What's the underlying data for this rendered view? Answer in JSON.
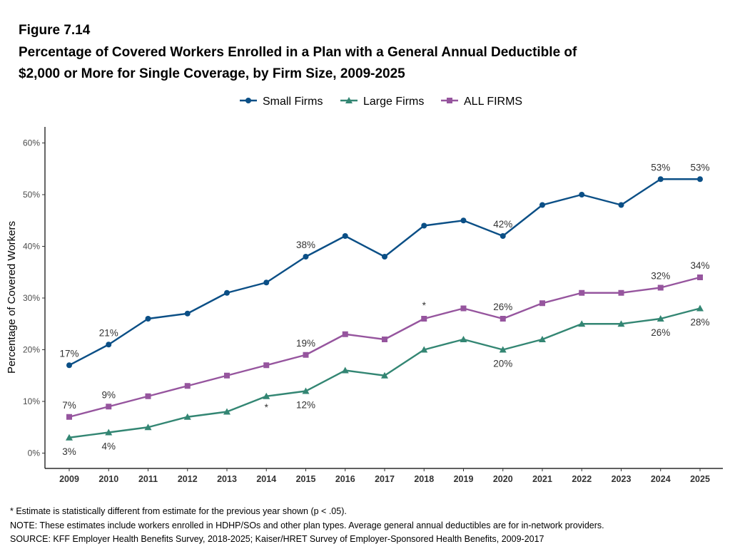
{
  "figure_label": "Figure 7.14",
  "title_line1": "Percentage of Covered Workers Enrolled in a Plan with a General Annual Deductible of",
  "title_line2": "$2,000 or More for Single Coverage, by Firm Size, 2009-2025",
  "notes": [
    "* Estimate is statistically different from estimate for the previous year shown (p < .05).",
    "NOTE: These estimates include workers enrolled in HDHP/SOs and other plan types. Average general annual deductibles are for in-network providers.",
    "SOURCE: KFF Employer Health Benefits Survey, 2018-2025; Kaiser/HRET Survey of Employer-Sponsored Health Benefits, 2009-2017"
  ],
  "chart_data": {
    "type": "line",
    "ylabel": "Percentage of Covered Workers",
    "xlabel": "",
    "ylim": [
      0,
      60
    ],
    "yticks": [
      0,
      10,
      20,
      30,
      40,
      50,
      60
    ],
    "ytick_labels": [
      "0%",
      "10%",
      "20%",
      "30%",
      "40%",
      "50%",
      "60%"
    ],
    "x": [
      "2009",
      "2010",
      "2011",
      "2012",
      "2013",
      "2014",
      "2015",
      "2016",
      "2017",
      "2018",
      "2019",
      "2020",
      "2021",
      "2022",
      "2023",
      "2024",
      "2025"
    ],
    "legend_position": "top",
    "series": [
      {
        "name": "Small Firms",
        "color": "#0b4f86",
        "marker": "circle",
        "values": [
          17,
          21,
          26,
          27,
          31,
          33,
          38,
          42,
          38,
          44,
          45,
          42,
          48,
          50,
          48,
          53,
          53
        ],
        "labels": [
          {
            "index": 0,
            "text": "17%",
            "pos": "above"
          },
          {
            "index": 1,
            "text": "21%",
            "pos": "above"
          },
          {
            "index": 6,
            "text": "38%",
            "pos": "above"
          },
          {
            "index": 11,
            "text": "42%",
            "pos": "above"
          },
          {
            "index": 15,
            "text": "53%",
            "pos": "above"
          },
          {
            "index": 16,
            "text": "53%",
            "pos": "above"
          }
        ]
      },
      {
        "name": "Large Firms",
        "color": "#338673",
        "marker": "triangle",
        "values": [
          3,
          4,
          5,
          7,
          8,
          11,
          12,
          16,
          15,
          20,
          22,
          20,
          22,
          25,
          25,
          26,
          28
        ],
        "labels": [
          {
            "index": 0,
            "text": "3%",
            "pos": "below"
          },
          {
            "index": 1,
            "text": "4%",
            "pos": "below"
          },
          {
            "index": 5,
            "text": "*",
            "pos": "below"
          },
          {
            "index": 6,
            "text": "12%",
            "pos": "below"
          },
          {
            "index": 11,
            "text": "20%",
            "pos": "below"
          },
          {
            "index": 15,
            "text": "26%",
            "pos": "below"
          },
          {
            "index": 16,
            "text": "28%",
            "pos": "below"
          }
        ]
      },
      {
        "name": "ALL FIRMS",
        "color": "#96559e",
        "marker": "square",
        "values": [
          7,
          9,
          11,
          13,
          15,
          17,
          19,
          23,
          22,
          26,
          28,
          26,
          29,
          31,
          31,
          32,
          34
        ],
        "labels": [
          {
            "index": 0,
            "text": "7%",
            "pos": "above"
          },
          {
            "index": 1,
            "text": "9%",
            "pos": "above"
          },
          {
            "index": 6,
            "text": "19%",
            "pos": "above"
          },
          {
            "index": 9,
            "text": "*",
            "pos": "above"
          },
          {
            "index": 11,
            "text": "26%",
            "pos": "above"
          },
          {
            "index": 15,
            "text": "32%",
            "pos": "above"
          },
          {
            "index": 16,
            "text": "34%",
            "pos": "above"
          }
        ]
      }
    ]
  }
}
